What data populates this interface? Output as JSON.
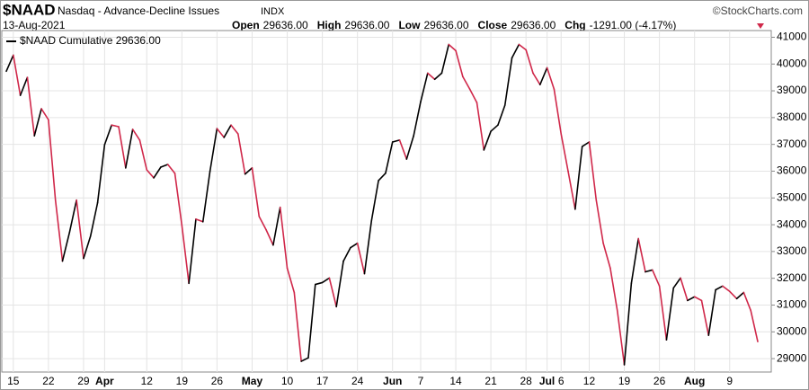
{
  "chart_data": {
    "type": "line",
    "title": "$NAAD",
    "subtitle": "Nasdaq - Advance-Decline Issues",
    "exchange": "INDX",
    "source": "©StockCharts.com",
    "date": "13-Aug-2021",
    "quote": [
      {
        "label": "Open",
        "value": "29636.00"
      },
      {
        "label": "High",
        "value": "29636.00"
      },
      {
        "label": "Low",
        "value": "29636.00"
      },
      {
        "label": "Close",
        "value": "29636.00"
      },
      {
        "label": "Chg",
        "value": "-1291.00 (-4.17%)"
      }
    ],
    "categories": [
      null,
      "15",
      null,
      null,
      null,
      null,
      "22",
      null,
      null,
      null,
      null,
      "29",
      null,
      null,
      "Apr",
      null,
      null,
      null,
      null,
      null,
      "12",
      null,
      null,
      null,
      null,
      "19",
      null,
      null,
      null,
      null,
      "26",
      null,
      null,
      null,
      null,
      "May",
      null,
      null,
      null,
      null,
      "10",
      null,
      null,
      null,
      null,
      "17",
      null,
      null,
      null,
      null,
      "24",
      null,
      null,
      null,
      null,
      "Jun",
      null,
      null,
      null,
      "7",
      null,
      null,
      null,
      null,
      "14",
      null,
      null,
      null,
      null,
      "21",
      null,
      null,
      null,
      null,
      "28",
      null,
      null,
      "Jul",
      null,
      "6",
      null,
      null,
      null,
      "12",
      null,
      null,
      null,
      null,
      "19",
      null,
      null,
      null,
      null,
      "26",
      null,
      null,
      null,
      null,
      "Aug",
      null,
      null,
      null,
      null,
      "9",
      null,
      null,
      null,
      null
    ],
    "series": [
      {
        "name": "$NAAD Cumulative 29636.00",
        "color": "#000000",
        "down_color": "#d0284a",
        "values": [
          39730,
          40330,
          38830,
          39500,
          37320,
          38330,
          37920,
          34920,
          32640,
          33710,
          34920,
          32740,
          33580,
          34820,
          36990,
          37720,
          37660,
          36120,
          37560,
          37160,
          36050,
          35750,
          36150,
          36250,
          35920,
          33980,
          31810,
          34210,
          34110,
          35990,
          37590,
          37260,
          37720,
          37390,
          35890,
          36120,
          34310,
          33810,
          33240,
          34650,
          32380,
          31470,
          28900,
          29030,
          31770,
          31840,
          32010,
          30940,
          32640,
          33140,
          33310,
          32170,
          34150,
          35650,
          35920,
          37090,
          37160,
          36450,
          37320,
          38590,
          39660,
          39430,
          39660,
          40730,
          40500,
          39530,
          39060,
          38560,
          36790,
          37490,
          37720,
          38460,
          40230,
          40730,
          40530,
          39660,
          39230,
          39860,
          39060,
          37390,
          35990,
          34580,
          36920,
          37090,
          34920,
          33310,
          32380,
          30800,
          28770,
          31810,
          33480,
          32240,
          32310,
          31710,
          29700,
          31640,
          32010,
          31170,
          31310,
          31170,
          29870,
          31570,
          31710,
          31510,
          31240,
          31470,
          30800,
          29636
        ]
      }
    ],
    "ylim": [
      28500,
      41250
    ],
    "yticks": [
      29000,
      30000,
      31000,
      32000,
      33000,
      34000,
      35000,
      36000,
      37000,
      38000,
      39000,
      40000,
      41000
    ],
    "grid": true
  }
}
